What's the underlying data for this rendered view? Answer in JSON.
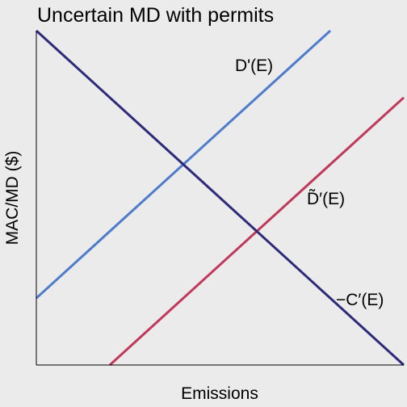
{
  "chart_data": {
    "type": "line",
    "title": "Uncertain MD with permits",
    "xlabel": "Emissions",
    "ylabel": "MAC/MD ($)",
    "xlim": [
      0,
      10
    ],
    "ylim": [
      0,
      10
    ],
    "grid": false,
    "legend": "none",
    "ticks": "none",
    "series": [
      {
        "name": "-C'(E)",
        "label": "−C′(E)",
        "color": "#2e2a7a",
        "x": [
          0,
          10
        ],
        "y": [
          10,
          0
        ]
      },
      {
        "name": "D'(E)",
        "label": "D'(E)",
        "color": "#4f7bcb",
        "x": [
          0,
          8
        ],
        "y": [
          2,
          10
        ]
      },
      {
        "name": "D-tilde'(E)",
        "label": "D̃′(E)",
        "color": "#c0395b",
        "x": [
          2,
          10
        ],
        "y": [
          0,
          8
        ]
      }
    ]
  }
}
